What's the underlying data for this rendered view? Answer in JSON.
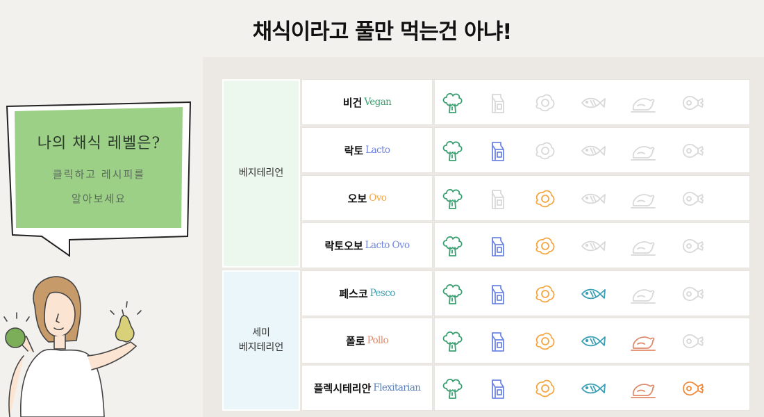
{
  "page": {
    "title": "채식이라고 풀만 먹는건 아냐!"
  },
  "bubble": {
    "title": "나의 채식 레벨은?",
    "subtitle_lines": [
      "클릭하고 레시피를",
      "알아보세요"
    ],
    "fill_color": "#9cd087"
  },
  "groups": [
    {
      "label_lines": [
        "베지테리언"
      ],
      "color": "#ecf7ed"
    },
    {
      "label_lines": [
        "세미",
        "베지테리언"
      ],
      "color": "#eaf6f9"
    }
  ],
  "food_icons": [
    "broccoli-icon",
    "milk-carton-icon",
    "egg-icon",
    "fish-icon",
    "chicken-icon",
    "meat-icon"
  ],
  "food_colors": {
    "broccoli": "#3aa071",
    "milk": "#6f86e1",
    "egg": "#f5a640",
    "fish": "#3a9fb5",
    "chicken": "#e08a6a",
    "meat": "#f08a3a",
    "inactive": "#d8d8d8"
  },
  "levels": [
    {
      "name_ko": "비건",
      "name_en": "Vegan",
      "en_color": "#3aa071",
      "foods": [
        true,
        false,
        false,
        false,
        false,
        false
      ]
    },
    {
      "name_ko": "락토",
      "name_en": "Lacto",
      "en_color": "#6f86e1",
      "foods": [
        true,
        true,
        false,
        false,
        false,
        false
      ]
    },
    {
      "name_ko": "오보",
      "name_en": "Ovo",
      "en_color": "#f5a640",
      "foods": [
        true,
        false,
        true,
        false,
        false,
        false
      ]
    },
    {
      "name_ko": "락토오보",
      "name_en": "Lacto Ovo",
      "en_color": "#6f86e1",
      "foods": [
        true,
        true,
        true,
        false,
        false,
        false
      ]
    },
    {
      "name_ko": "페스코",
      "name_en": "Pesco",
      "en_color": "#3a9fb5",
      "foods": [
        true,
        true,
        true,
        true,
        false,
        false
      ]
    },
    {
      "name_ko": "폴로",
      "name_en": "Pollo",
      "en_color": "#e08a6a",
      "foods": [
        true,
        true,
        true,
        true,
        true,
        false
      ]
    },
    {
      "name_ko": "플렉시테리안",
      "name_en": "Flexitarian",
      "en_color": "#5b7fb8",
      "foods": [
        true,
        true,
        true,
        true,
        true,
        true
      ]
    }
  ]
}
